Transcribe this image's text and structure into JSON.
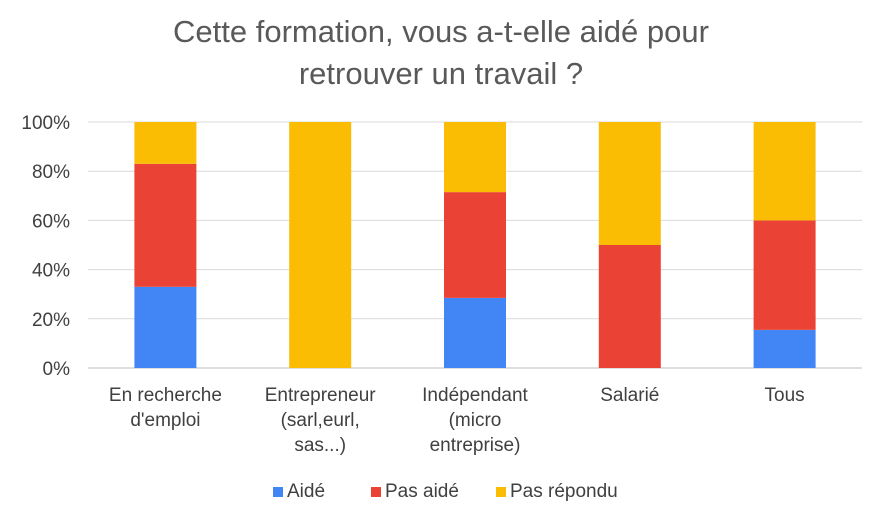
{
  "chart_data": {
    "type": "bar",
    "stacked": true,
    "title_lines": [
      "Cette formation, vous a-t-elle aidé pour",
      "retrouver un travail ?"
    ],
    "categories": [
      [
        "En recherche",
        "d'emploi"
      ],
      [
        "Entrepreneur",
        "(sarl,eurl,",
        "sas...)"
      ],
      [
        "Indépendant",
        "(micro",
        "entreprise)"
      ],
      [
        "Salarié"
      ],
      [
        "Tous"
      ]
    ],
    "series": [
      {
        "name": "Aidé",
        "color": "#4285F4",
        "values": [
          33,
          0,
          28.5,
          0,
          15.5
        ]
      },
      {
        "name": "Pas aidé",
        "color": "#EA4335",
        "values": [
          50,
          0,
          43,
          50,
          44.5
        ]
      },
      {
        "name": "Pas répondu",
        "color": "#FBBC04",
        "values": [
          17,
          100,
          28.5,
          50,
          40
        ]
      }
    ],
    "ylim": [
      0,
      100
    ],
    "y_ticks": [
      "0%",
      "20%",
      "40%",
      "60%",
      "80%",
      "100%"
    ],
    "grid": true,
    "legend_position": "bottom"
  }
}
